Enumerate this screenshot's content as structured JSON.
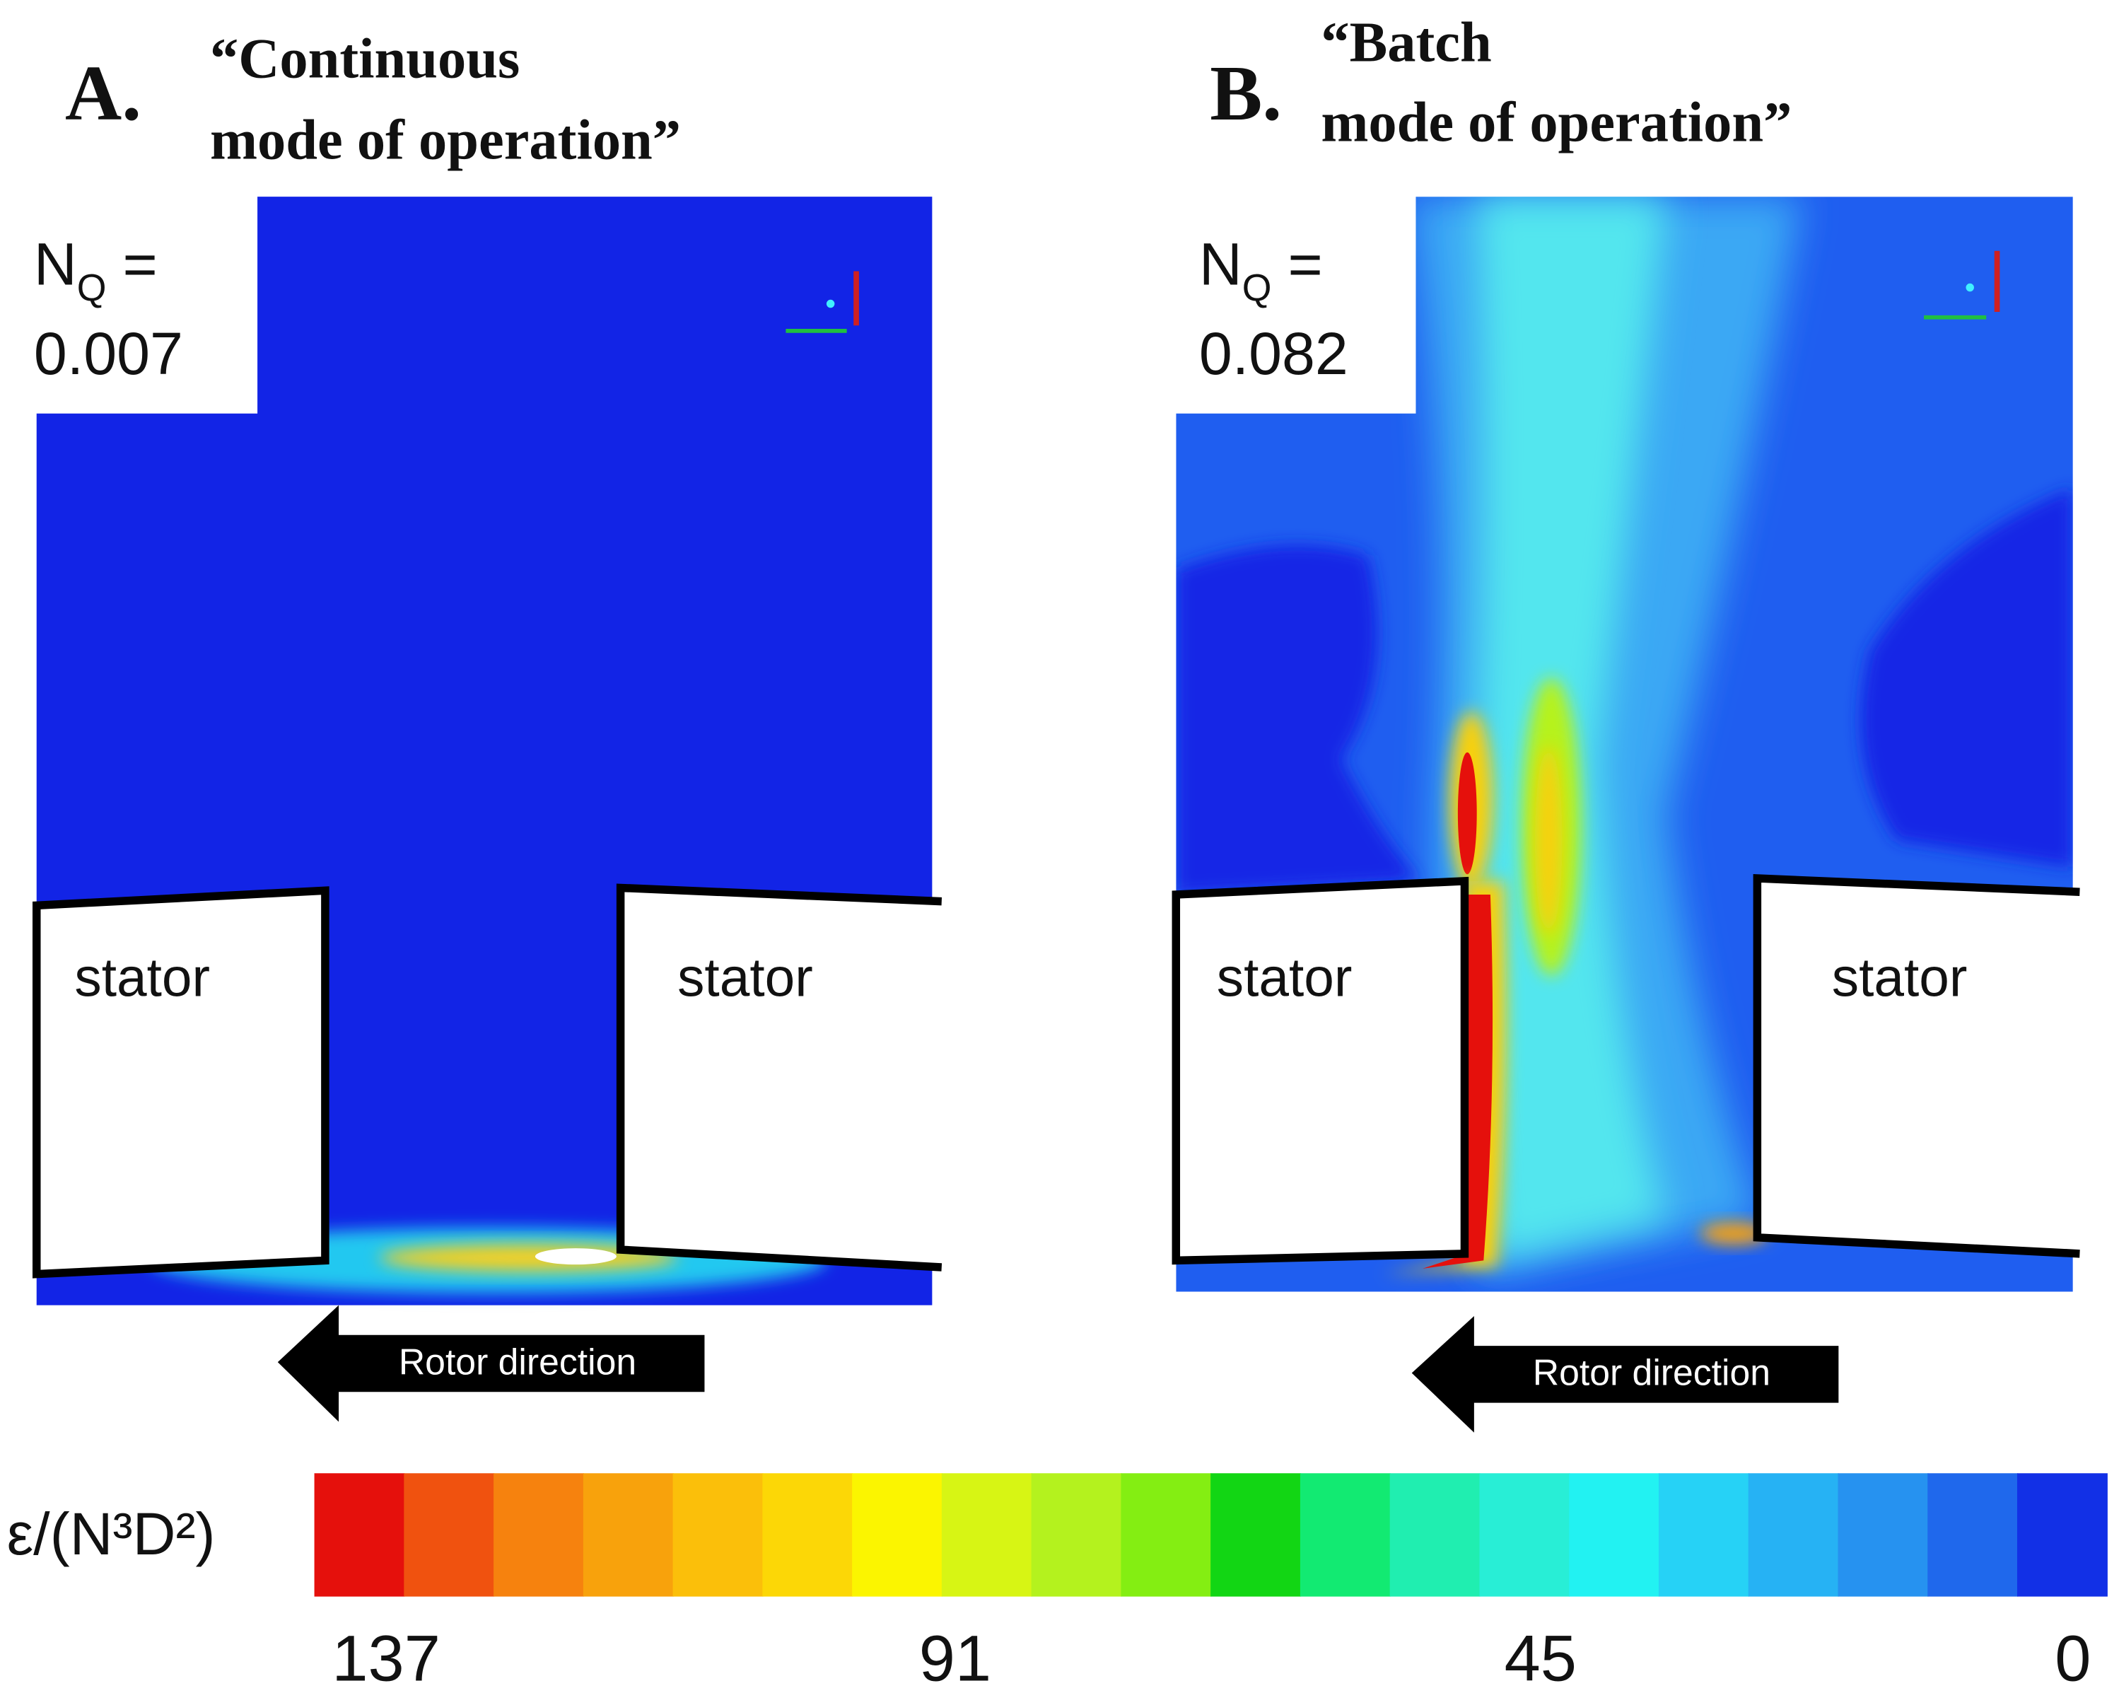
{
  "panels": [
    {
      "label": "A.",
      "title": [
        "“Continuous",
        "mode of operation”"
      ],
      "nq": {
        "symbol": "N",
        "subscript": "Q",
        "equals": "=",
        "value": "0.007"
      },
      "stators": [
        "stator",
        "stator"
      ],
      "arrow": "Rotor direction"
    },
    {
      "label": "B.",
      "title": [
        "“Batch",
        "mode of operation”"
      ],
      "nq": {
        "symbol": "N",
        "subscript": "Q",
        "equals": "=",
        "value": "0.082"
      },
      "stators": [
        "stator",
        "stator"
      ],
      "arrow": "Rotor direction"
    }
  ],
  "colorbar": {
    "label": "ε/(N³D²)",
    "ticks": [
      137,
      91,
      45,
      0
    ],
    "colors": [
      "#e5100c",
      "#f0520f",
      "#f6820e",
      "#f8a20c",
      "#fbbf0a",
      "#fcd706",
      "#fbf500",
      "#d7f514",
      "#b4f21e",
      "#84ee12",
      "#12d614",
      "#12ea72",
      "#20eeb0",
      "#28eed6",
      "#22f2f2",
      "#26d2f6",
      "#26b2f4",
      "#2692f0",
      "#1f68ec",
      "#1230e6"
    ]
  }
}
